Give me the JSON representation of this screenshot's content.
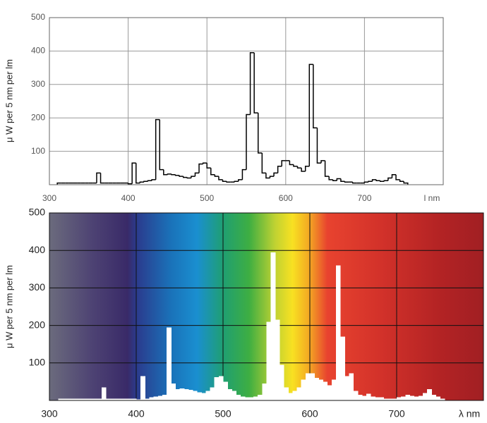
{
  "chart_data": [
    {
      "type": "line",
      "drawstyle": "steps-post",
      "color": "#000000",
      "grid": true,
      "ylabel": "μ W per 5 nm per lm",
      "xlabel": "l nm",
      "xlim": [
        300,
        800
      ],
      "ylim": [
        0,
        500
      ],
      "xticks": [
        300,
        400,
        500,
        600,
        700
      ],
      "yticks": [
        100,
        200,
        300,
        400,
        500
      ],
      "x": [
        310,
        315,
        320,
        325,
        330,
        335,
        340,
        345,
        350,
        355,
        360,
        365,
        370,
        375,
        380,
        385,
        390,
        395,
        400,
        405,
        410,
        415,
        420,
        425,
        430,
        435,
        440,
        445,
        450,
        455,
        460,
        465,
        470,
        475,
        480,
        485,
        490,
        495,
        500,
        505,
        510,
        515,
        520,
        525,
        530,
        535,
        540,
        545,
        550,
        555,
        560,
        565,
        570,
        575,
        580,
        585,
        590,
        595,
        600,
        605,
        610,
        615,
        620,
        625,
        630,
        635,
        640,
        645,
        650,
        655,
        660,
        665,
        670,
        675,
        680,
        685,
        690,
        695,
        700,
        705,
        710,
        715,
        720,
        725,
        730,
        735,
        740,
        745,
        750
      ],
      "values": [
        5,
        5,
        5,
        5,
        5,
        5,
        5,
        5,
        5,
        5,
        35,
        5,
        5,
        5,
        5,
        5,
        5,
        5,
        3,
        65,
        5,
        8,
        10,
        12,
        15,
        195,
        45,
        30,
        32,
        30,
        28,
        25,
        22,
        20,
        25,
        35,
        62,
        65,
        50,
        30,
        25,
        15,
        10,
        8,
        8,
        10,
        15,
        45,
        210,
        395,
        215,
        95,
        35,
        20,
        25,
        35,
        55,
        72,
        72,
        60,
        55,
        50,
        40,
        55,
        360,
        170,
        65,
        72,
        25,
        15,
        12,
        18,
        10,
        8,
        8,
        5,
        5,
        5,
        8,
        10,
        15,
        12,
        10,
        12,
        20,
        30,
        15,
        10,
        5
      ]
    },
    {
      "type": "area",
      "drawstyle": "steps-post",
      "color": "#ffffff",
      "grid": true,
      "ylabel": "μ W per 5 nm per lm",
      "xlabel": "λ nm",
      "xlim": [
        300,
        800
      ],
      "ylim": [
        0,
        500
      ],
      "xticks": [
        300,
        400,
        500,
        600,
        700
      ],
      "yticks": [
        100,
        200,
        300,
        400,
        500
      ],
      "x": [
        310,
        315,
        320,
        325,
        330,
        335,
        340,
        345,
        350,
        355,
        360,
        365,
        370,
        375,
        380,
        385,
        390,
        395,
        400,
        405,
        410,
        415,
        420,
        425,
        430,
        435,
        440,
        445,
        450,
        455,
        460,
        465,
        470,
        475,
        480,
        485,
        490,
        495,
        500,
        505,
        510,
        515,
        520,
        525,
        530,
        535,
        540,
        545,
        550,
        555,
        560,
        565,
        570,
        575,
        580,
        585,
        590,
        595,
        600,
        605,
        610,
        615,
        620,
        625,
        630,
        635,
        640,
        645,
        650,
        655,
        660,
        665,
        670,
        675,
        680,
        685,
        690,
        695,
        700,
        705,
        710,
        715,
        720,
        725,
        730,
        735,
        740,
        745,
        750
      ],
      "values": [
        5,
        5,
        5,
        5,
        5,
        5,
        5,
        5,
        5,
        5,
        35,
        5,
        5,
        5,
        5,
        5,
        5,
        5,
        3,
        65,
        5,
        8,
        10,
        12,
        15,
        195,
        45,
        30,
        32,
        30,
        28,
        25,
        22,
        20,
        25,
        35,
        62,
        65,
        50,
        30,
        25,
        15,
        10,
        8,
        8,
        10,
        15,
        45,
        210,
        395,
        215,
        95,
        35,
        20,
        25,
        35,
        55,
        72,
        72,
        60,
        55,
        50,
        40,
        55,
        360,
        170,
        65,
        72,
        25,
        15,
        12,
        18,
        10,
        8,
        8,
        5,
        5,
        5,
        8,
        10,
        15,
        12,
        10,
        12,
        20,
        30,
        15,
        10,
        5
      ]
    }
  ]
}
